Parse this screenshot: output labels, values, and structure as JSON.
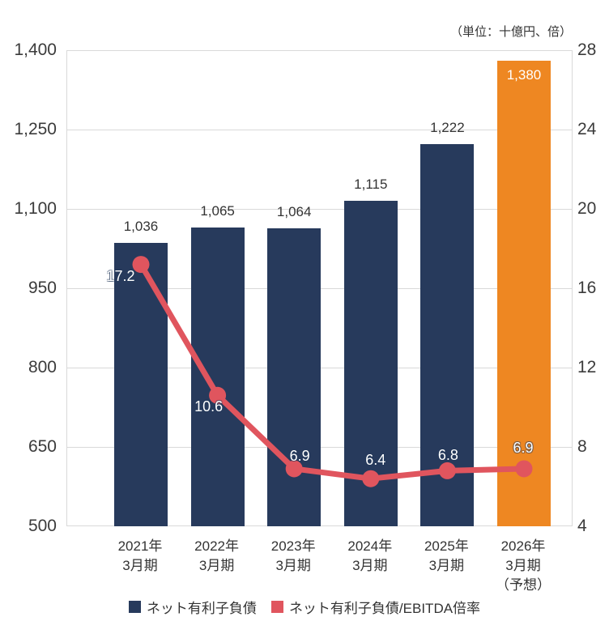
{
  "unit_note": "（単位：十億円、倍）",
  "legend": [
    {
      "label": "ネット有利子負債",
      "color": "#273a5c"
    },
    {
      "label": "ネット有利子負債/EBITDA倍率",
      "color": "#e0555e"
    }
  ],
  "chart_data": {
    "type": "combo",
    "subtypes": [
      "bar",
      "line"
    ],
    "categories": [
      {
        "lines": [
          "2021年",
          "3月期"
        ]
      },
      {
        "lines": [
          "2022年",
          "3月期"
        ]
      },
      {
        "lines": [
          "2023年",
          "3月期"
        ]
      },
      {
        "lines": [
          "2024年",
          "3月期"
        ]
      },
      {
        "lines": [
          "2025年",
          "3月期"
        ]
      },
      {
        "lines": [
          "2026年",
          "3月期",
          "（予想）"
        ]
      }
    ],
    "series": [
      {
        "name": "ネット有利子負債",
        "type": "bar",
        "axis": "left",
        "values": [
          1036,
          1065,
          1064,
          1115,
          1222,
          1380
        ],
        "labels": [
          "1,036",
          "1,065",
          "1,064",
          "1,115",
          "1,222",
          "1,380"
        ],
        "bar_colors": [
          "#273a5c",
          "#273a5c",
          "#273a5c",
          "#273a5c",
          "#273a5c",
          "#ee8722"
        ],
        "label_styles": [
          "outside",
          "outside",
          "outside",
          "outside",
          "outside",
          "inside"
        ]
      },
      {
        "name": "ネット有利子負債/EBITDA倍率",
        "type": "line",
        "axis": "right",
        "values": [
          17.2,
          10.6,
          6.9,
          6.4,
          6.8,
          6.9
        ],
        "labels": [
          "17.2",
          "10.6",
          "6.9",
          "6.4",
          "6.8",
          "6.9"
        ],
        "color": "#e0555e"
      }
    ],
    "left_axis": {
      "min": 500,
      "max": 1400,
      "tick_labels": [
        "1,400",
        "1,250",
        "1,100",
        "950",
        "800",
        "650",
        "500"
      ]
    },
    "right_axis": {
      "min": 4,
      "max": 28,
      "tick_labels": [
        "28",
        "24",
        "20",
        "16",
        "12",
        "8",
        "4"
      ]
    },
    "grid": true,
    "legend_position": "bottom",
    "unit_note": "（単位：十億円、倍）"
  }
}
